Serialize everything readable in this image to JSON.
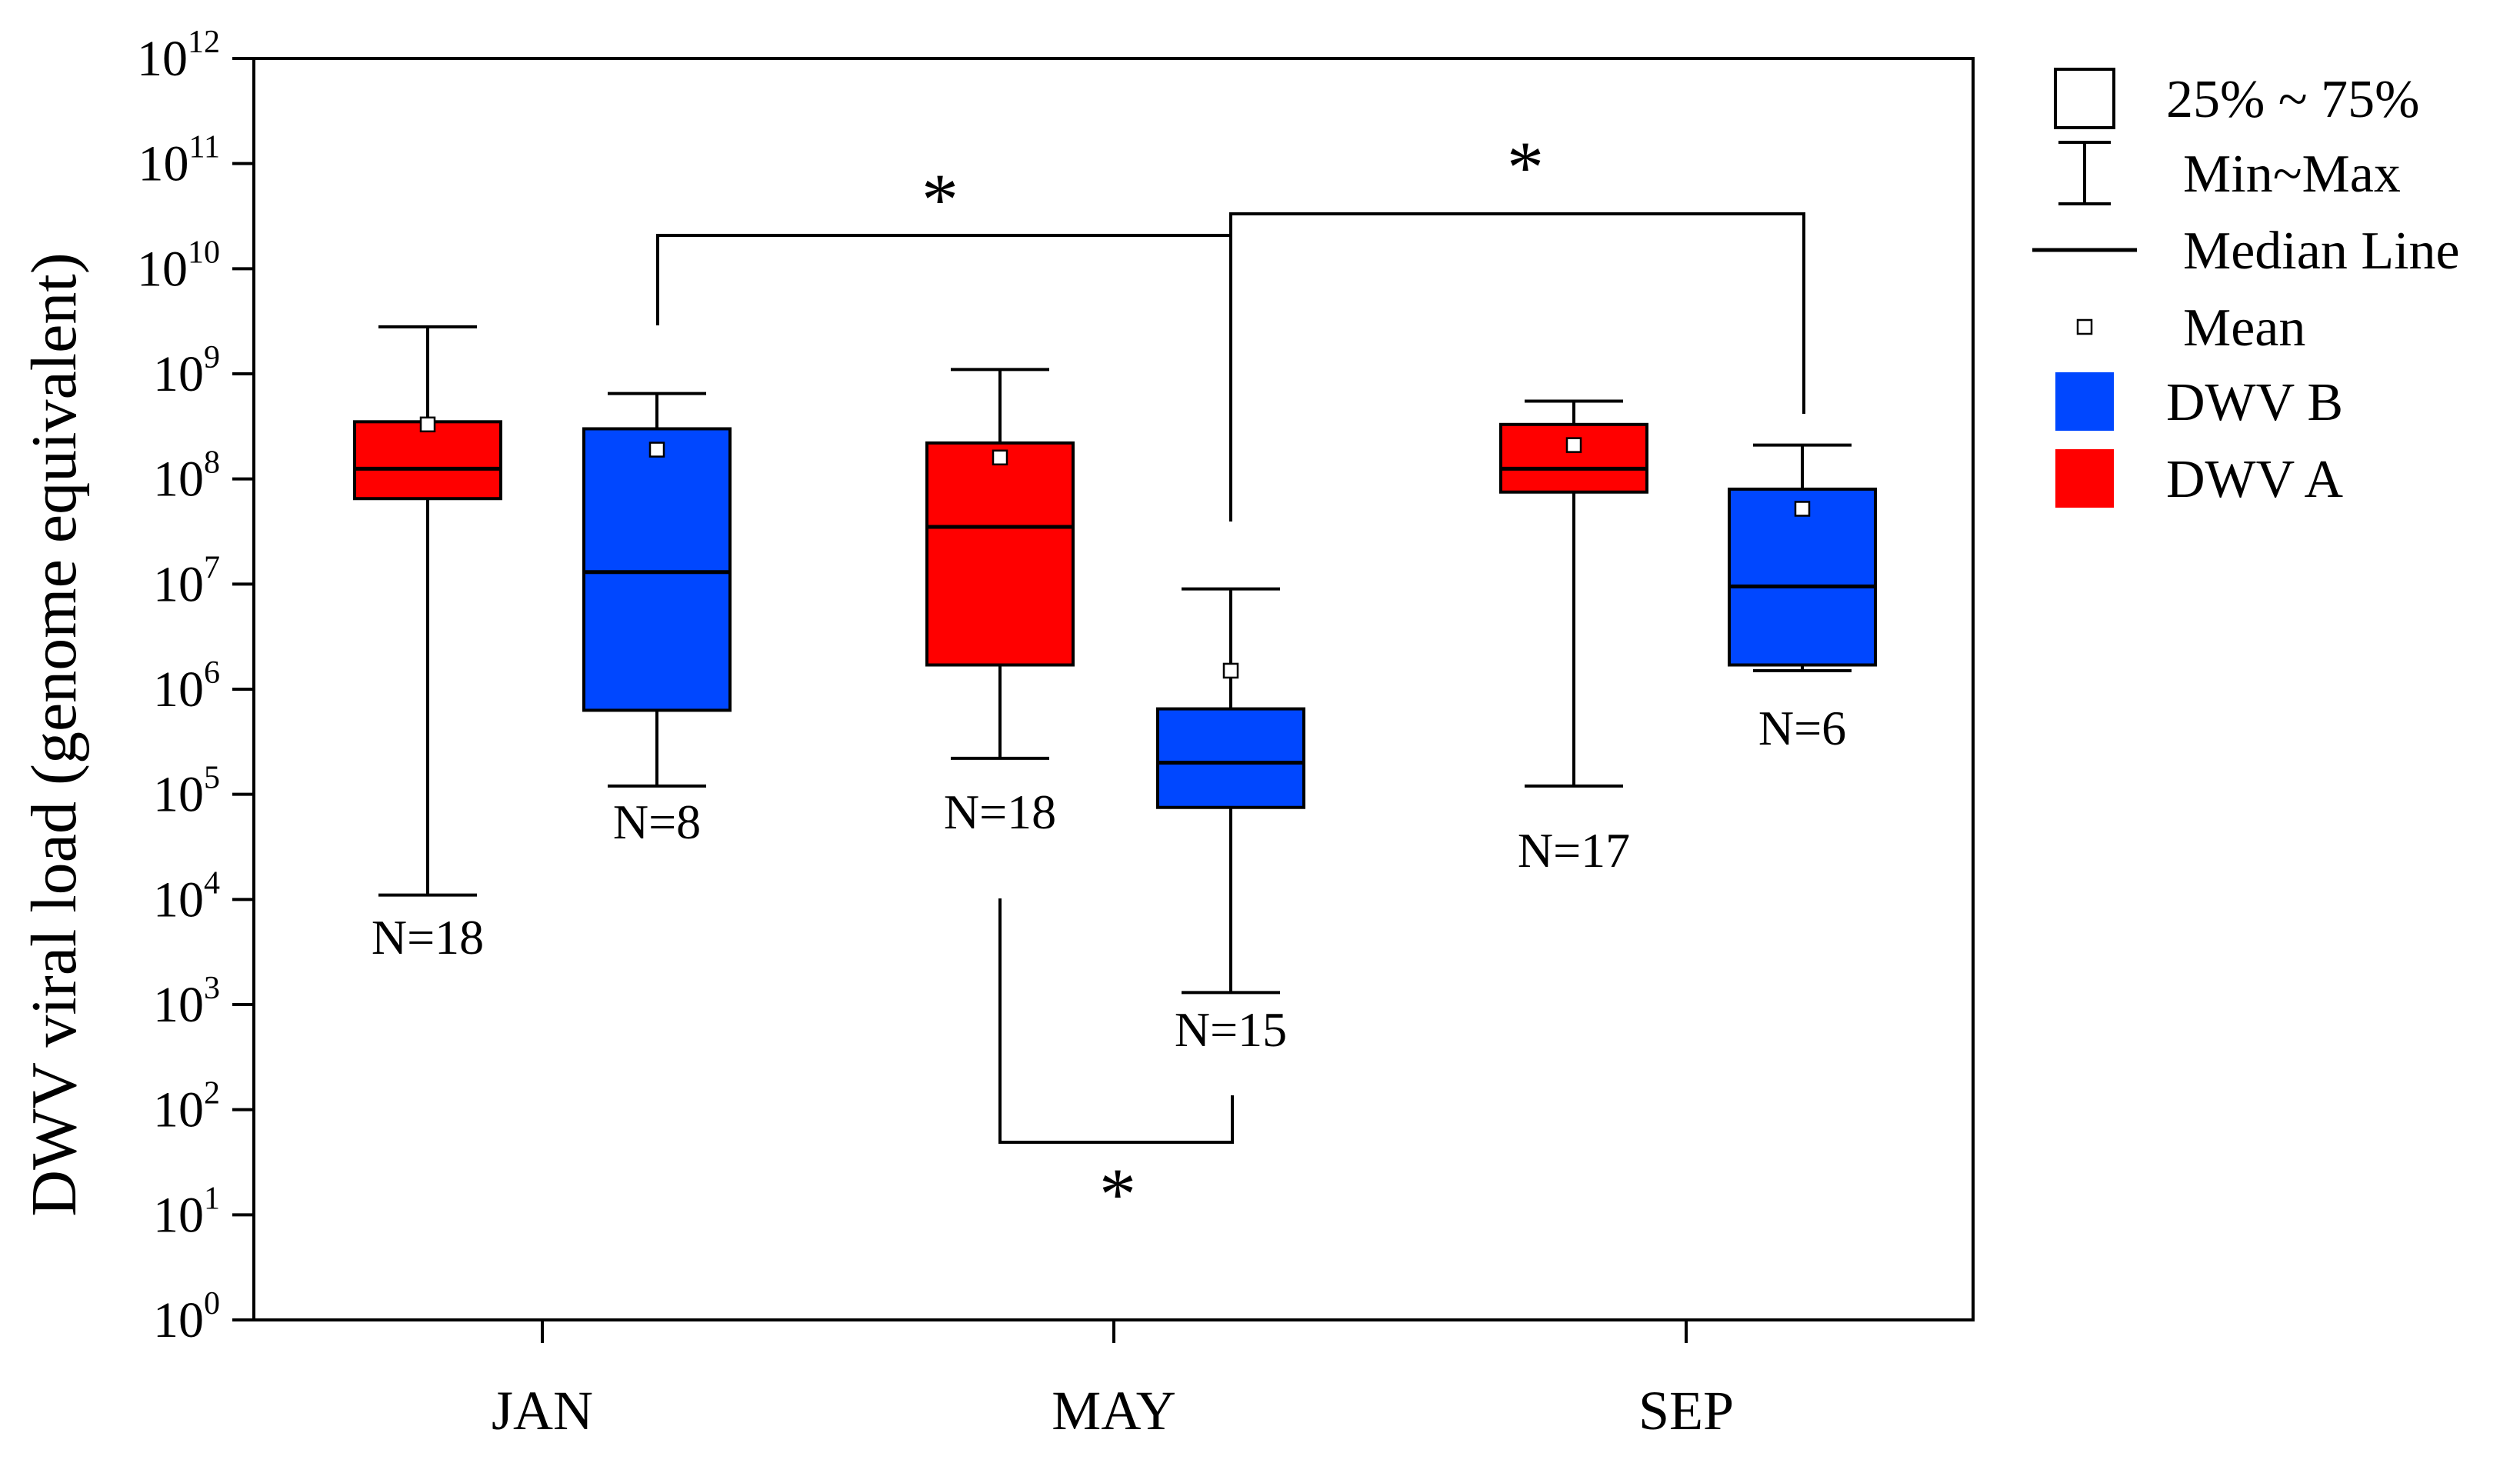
{
  "chart_data": {
    "type": "box",
    "ylabel": "DWV viral load (genome equivalent)",
    "yscale": "log10",
    "ylim_exponents": [
      0,
      12
    ],
    "y_tick_exponents": [
      0,
      1,
      2,
      3,
      4,
      5,
      6,
      7,
      8,
      9,
      10,
      11,
      12
    ],
    "categories": [
      "JAN",
      "MAY",
      "SEP"
    ],
    "series_colors": {
      "DWV A": "#ff0000",
      "DWV B": "#0047ff"
    },
    "boxes": [
      {
        "category": "JAN",
        "series": "DWV A",
        "min": 11000.0,
        "q1": 65000000.0,
        "median": 125000000.0,
        "q3": 350000000.0,
        "max": 2800000000.0,
        "mean": 330000000.0,
        "n_label": "N=18"
      },
      {
        "category": "JAN",
        "series": "DWV B",
        "min": 120000.0,
        "q1": 630000.0,
        "median": 13000000.0,
        "q3": 300000000.0,
        "max": 650000000.0,
        "mean": 190000000.0,
        "n_label": "N=8"
      },
      {
        "category": "MAY",
        "series": "DWV A",
        "min": 220000.0,
        "q1": 1700000.0,
        "median": 35000000.0,
        "q3": 220000000.0,
        "max": 1100000000.0,
        "mean": 160000000.0,
        "n_label": "N=18"
      },
      {
        "category": "MAY",
        "series": "DWV B",
        "min": 1300.0,
        "q1": 75000.0,
        "median": 200000.0,
        "q3": 650000.0,
        "max": 9000000.0,
        "mean": 1500000.0,
        "n_label": "N=15"
      },
      {
        "category": "SEP",
        "series": "DWV A",
        "min": 120000.0,
        "q1": 75000000.0,
        "median": 125000000.0,
        "q3": 330000000.0,
        "max": 550000000.0,
        "mean": 210000000.0,
        "n_label": "N=17"
      },
      {
        "category": "SEP",
        "series": "DWV B",
        "min": 1500000.0,
        "q1": 1700000.0,
        "median": 9500000.0,
        "q3": 80000000.0,
        "max": 210000000.0,
        "mean": 52000000.0,
        "n_label": "N=6"
      }
    ],
    "significance": [
      {
        "from_box": 1,
        "to_box": 3,
        "label": "*"
      },
      {
        "from_box": 3,
        "to_box": 5,
        "label": "*"
      },
      {
        "from_box": 2,
        "to_box": 3,
        "label": "*"
      }
    ],
    "legend": {
      "placement": "right",
      "items": [
        {
          "symbol": "box",
          "label": "25% ~ 75%"
        },
        {
          "symbol": "whisker",
          "label": "Min~Max"
        },
        {
          "symbol": "line",
          "label": "Median Line"
        },
        {
          "symbol": "mean",
          "label": "Mean"
        },
        {
          "symbol": "fill",
          "color": "#0047ff",
          "label": "DWV B"
        },
        {
          "symbol": "fill",
          "color": "#ff0000",
          "label": "DWV A"
        }
      ]
    }
  }
}
